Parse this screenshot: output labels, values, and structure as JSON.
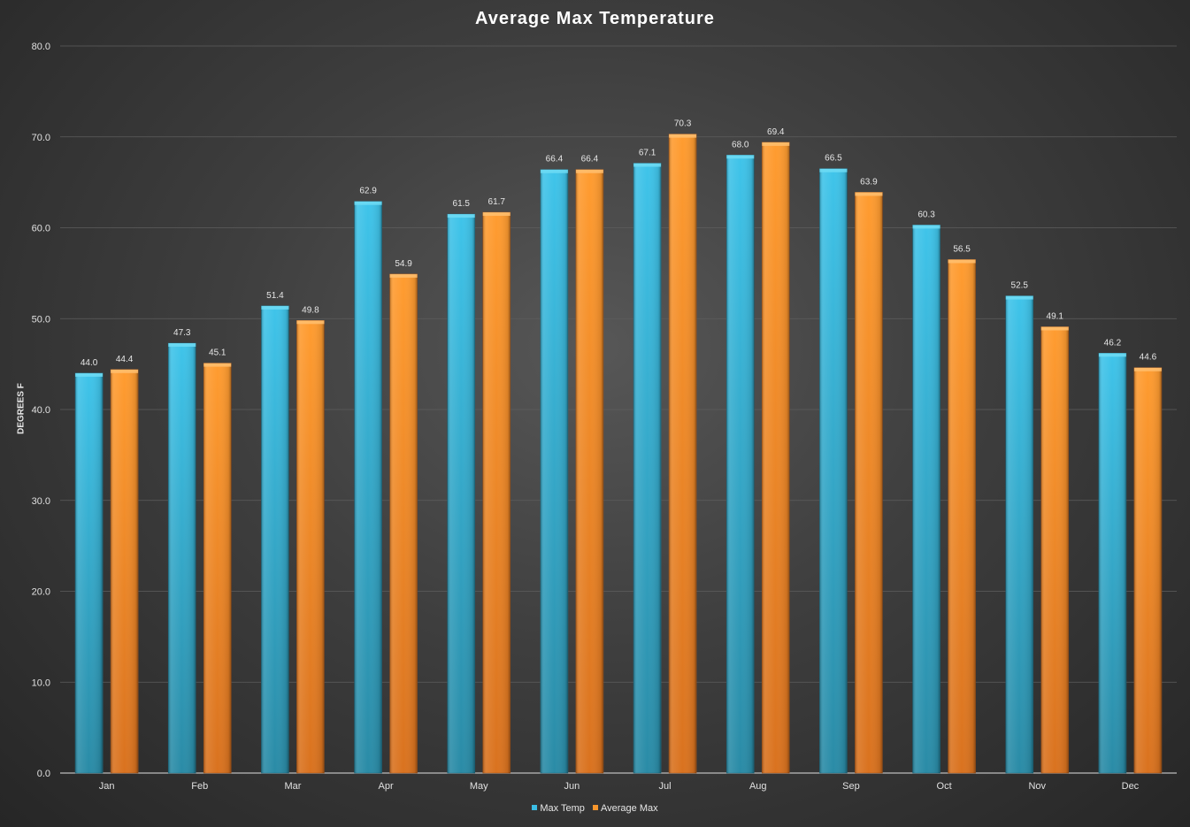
{
  "chart_data": {
    "type": "bar",
    "title": "Average Max Temperature",
    "xlabel": "",
    "ylabel": "DEGREES F",
    "ylim": [
      0,
      80
    ],
    "yticks": [
      "0.0",
      "10.0",
      "20.0",
      "30.0",
      "40.0",
      "50.0",
      "60.0",
      "70.0",
      "80.0"
    ],
    "grid": true,
    "legend_position": "bottom",
    "categories": [
      "Jan",
      "Feb",
      "Mar",
      "Apr",
      "May",
      "Jun",
      "Jul",
      "Aug",
      "Sep",
      "Oct",
      "Nov",
      "Dec"
    ],
    "series": [
      {
        "name": "Max Temp",
        "color": "#3bbde4",
        "values": [
          44.0,
          47.3,
          51.4,
          62.9,
          61.5,
          66.4,
          67.1,
          68.0,
          66.5,
          60.3,
          52.5,
          46.2
        ],
        "labels": [
          "44.0",
          "47.3",
          "51.4",
          "62.9",
          "61.5",
          "66.4",
          "67.1",
          "68.0",
          "66.5",
          "60.3",
          "52.5",
          "46.2"
        ]
      },
      {
        "name": "Average Max",
        "color": "#f7962c",
        "values": [
          44.4,
          45.1,
          49.8,
          54.9,
          61.7,
          66.4,
          70.3,
          69.4,
          63.9,
          56.5,
          49.1,
          44.6
        ],
        "labels": [
          "44.4",
          "45.1",
          "49.8",
          "54.9",
          "61.7",
          "66.4",
          "70.3",
          "69.4",
          "63.9",
          "56.5",
          "49.1",
          "44.6"
        ]
      }
    ]
  }
}
